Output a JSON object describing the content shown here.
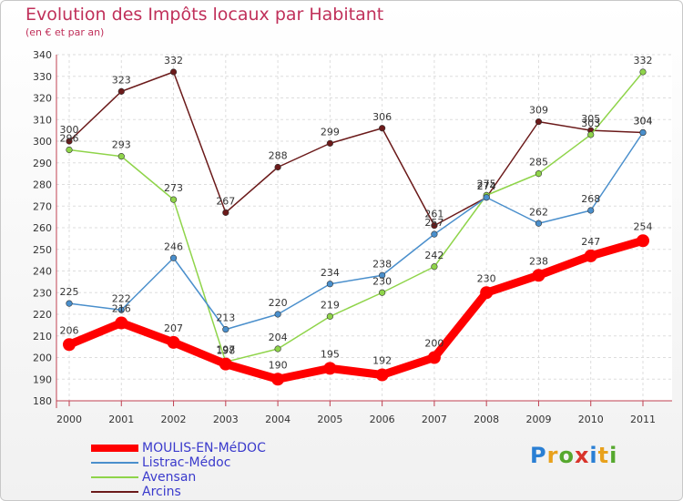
{
  "header": {
    "title": "Evolution des Impôts locaux par Habitant",
    "subtitle": "(en € et par an)"
  },
  "logo": {
    "text": "Proxiti",
    "colors": [
      "#2a7fd4",
      "#e8a11c",
      "#56a82e",
      "#d9342b",
      "#2a7fd4",
      "#e8a11c",
      "#56a82e"
    ]
  },
  "chart_data": {
    "type": "line",
    "title": "Evolution des Impôts locaux par Habitant",
    "subtitle": "(en € et par an)",
    "x": [
      "2000",
      "2001",
      "2002",
      "2003",
      "2004",
      "2005",
      "2006",
      "2007",
      "2008",
      "2009",
      "2010",
      "2011"
    ],
    "ylim": [
      180,
      340
    ],
    "yticks": [
      180,
      190,
      200,
      210,
      220,
      230,
      240,
      250,
      260,
      270,
      280,
      290,
      300,
      310,
      320,
      330,
      340
    ],
    "grid": true,
    "legend": "bottom-left",
    "series": [
      {
        "name": "MOULIS-EN-MéDOC",
        "color": "#ff0000",
        "values": [
          206,
          216,
          207,
          197,
          190,
          195,
          192,
          200,
          230,
          238,
          247,
          254
        ]
      },
      {
        "name": "Listrac-Médoc",
        "color": "#4a8fcc",
        "values": [
          225,
          222,
          246,
          213,
          220,
          234,
          238,
          257,
          274,
          262,
          268,
          304
        ]
      },
      {
        "name": "Avensan",
        "color": "#8fd44a",
        "values": [
          296,
          293,
          273,
          198,
          204,
          219,
          230,
          242,
          275,
          285,
          303,
          332
        ]
      },
      {
        "name": "Arcins",
        "color": "#6b1a1a",
        "values": [
          300,
          323,
          332,
          267,
          288,
          299,
          306,
          261,
          274,
          309,
          305,
          304
        ]
      }
    ]
  }
}
